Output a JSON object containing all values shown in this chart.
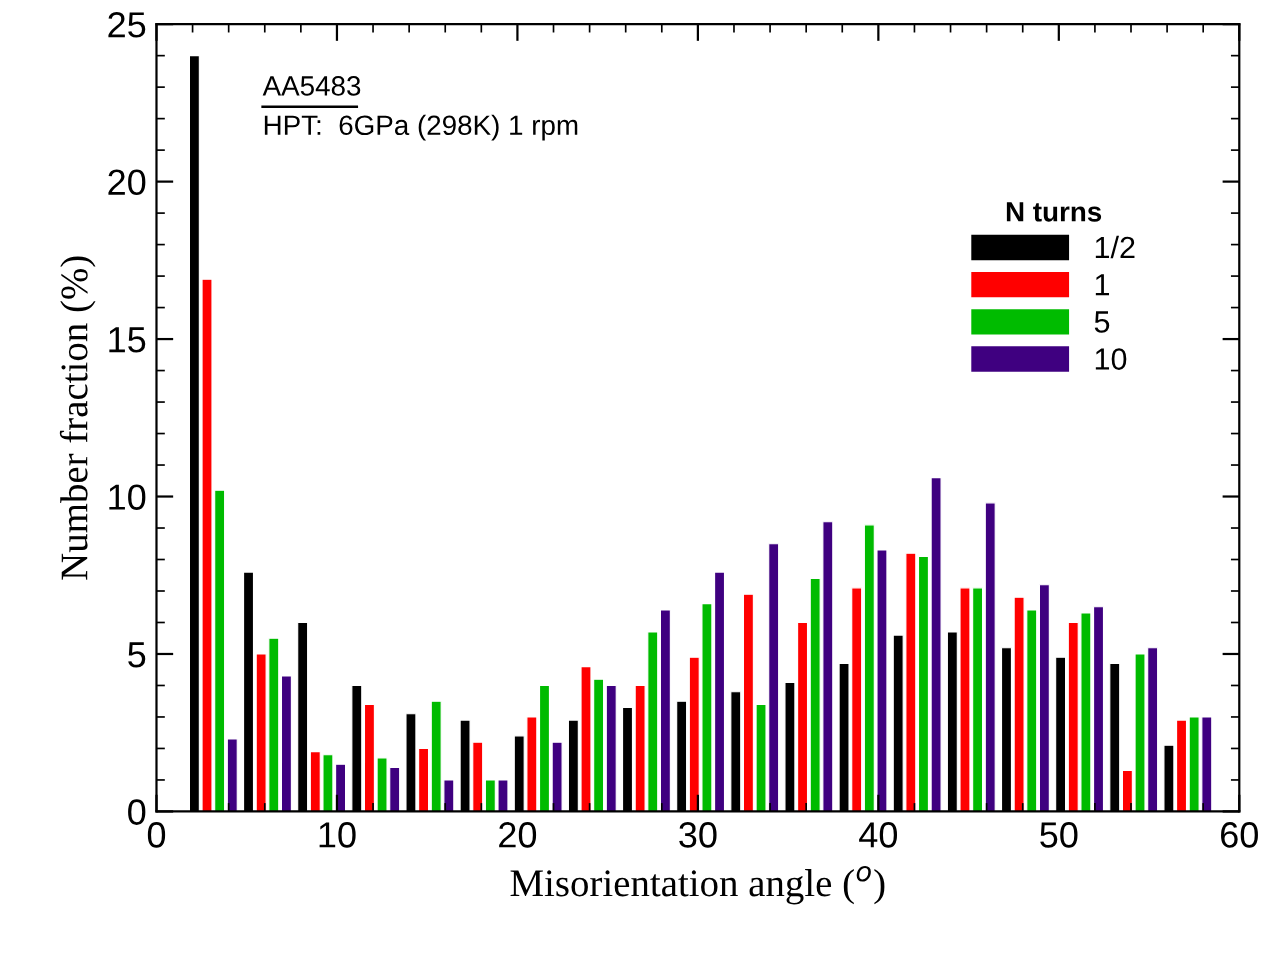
{
  "chart_data": {
    "type": "bar",
    "xlabel": "Misorientation angle ($^{o}$)",
    "ylabel": "Number fraction (%)",
    "legend_title": "N turns",
    "annotations": [
      "AA5483",
      "HPT:  6GPa (298K) 1 rpm"
    ],
    "xlim": [
      0,
      60
    ],
    "xticks": [
      0,
      10,
      20,
      30,
      40,
      50,
      60
    ],
    "ylim": [
      0,
      25
    ],
    "yticks": [
      0,
      5,
      10,
      15,
      20,
      25
    ],
    "grid": false,
    "legend": "top right",
    "series": [
      {
        "name": "1/2",
        "color": "#000000",
        "x": [
          2.1,
          5.1,
          8.1,
          11.1,
          14.1,
          17.1,
          20.1,
          23.1,
          26.1,
          29.1,
          32.1,
          35.1,
          38.1,
          41.1,
          44.1,
          47.1,
          50.1,
          53.1,
          56.1
        ],
        "values": [
          24,
          7.6,
          6.0,
          4.0,
          3.1,
          2.9,
          2.4,
          2.9,
          3.3,
          3.5,
          3.8,
          4.1,
          4.7,
          5.6,
          5.7,
          5.2,
          4.9,
          4.7,
          2.1
        ]
      },
      {
        "name": "1",
        "color": "#ff0000",
        "x": [
          2.8,
          5.8,
          8.8,
          11.8,
          14.8,
          17.8,
          20.8,
          23.8,
          26.8,
          29.8,
          32.8,
          35.8,
          38.8,
          41.8,
          44.8,
          47.8,
          50.8,
          53.8,
          56.8
        ],
        "values": [
          16.9,
          5.0,
          1.9,
          3.4,
          2.0,
          2.2,
          3.0,
          4.6,
          4.0,
          4.9,
          6.9,
          6.0,
          7.1,
          8.2,
          7.1,
          6.8,
          6.0,
          1.3,
          2.9
        ]
      },
      {
        "name": "5",
        "color": "#00bb00",
        "x": [
          3.5,
          6.5,
          9.5,
          12.5,
          15.5,
          18.5,
          21.5,
          24.5,
          27.5,
          30.5,
          33.5,
          36.5,
          39.5,
          42.5,
          45.5,
          48.5,
          51.5,
          54.5,
          57.5
        ],
        "values": [
          10.2,
          5.5,
          1.8,
          1.7,
          3.5,
          1.0,
          4.0,
          4.2,
          5.7,
          6.6,
          3.4,
          7.4,
          9.1,
          8.1,
          7.1,
          6.4,
          6.3,
          5.0,
          3.0
        ]
      },
      {
        "name": "10",
        "color": "#3f0080",
        "x": [
          4.2,
          7.2,
          10.2,
          13.2,
          16.2,
          19.2,
          22.2,
          25.2,
          28.2,
          31.2,
          34.2,
          37.2,
          40.2,
          43.2,
          46.2,
          49.2,
          52.2,
          55.2,
          58.2
        ],
        "values": [
          2.3,
          4.3,
          1.5,
          1.4,
          1.0,
          1.0,
          2.2,
          4.0,
          6.4,
          7.6,
          8.5,
          9.2,
          8.3,
          10.6,
          9.8,
          7.2,
          6.5,
          5.2,
          3.0
        ]
      }
    ]
  }
}
